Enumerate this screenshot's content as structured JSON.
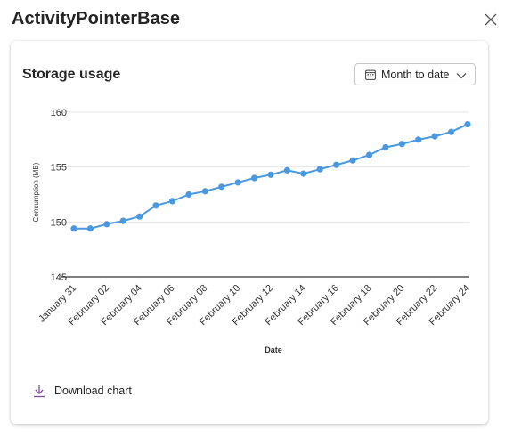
{
  "dialog": {
    "title": "ActivityPointerBase",
    "close_icon": "close-icon"
  },
  "card": {
    "title": "Storage usage",
    "range_dropdown": {
      "icon": "calendar-icon",
      "selected": "Month to date",
      "chevron": "chevron-down-icon"
    },
    "download": {
      "icon": "download-icon",
      "label": "Download chart"
    }
  },
  "colors": {
    "series": "#4a98e0",
    "accent_purple": "#7a4fa0",
    "grid": "#e6e6e6",
    "axis": "#333333"
  },
  "chart_data": {
    "type": "line",
    "xlabel": "Date",
    "ylabel": "Consumption (MB)",
    "ylim": [
      145,
      160
    ],
    "yticks": [
      145,
      150,
      155,
      160
    ],
    "grid": true,
    "x": [
      "January 31",
      "February 01",
      "February 02",
      "February 03",
      "February 04",
      "February 05",
      "February 06",
      "February 07",
      "February 08",
      "February 09",
      "February 10",
      "February 11",
      "February 12",
      "February 13",
      "February 14",
      "February 15",
      "February 16",
      "February 17",
      "February 18",
      "February 19",
      "February 20",
      "February 21",
      "February 22",
      "February 23",
      "February 24"
    ],
    "xtick_labels": [
      "January 31",
      "February 02",
      "February 04",
      "February 06",
      "February 08",
      "February 10",
      "February 12",
      "February 14",
      "February 16",
      "February 18",
      "February 20",
      "February 22",
      "February 24"
    ],
    "series": [
      {
        "values": [
          149.4,
          149.4,
          149.8,
          150.1,
          150.5,
          151.5,
          151.9,
          152.5,
          152.8,
          153.2,
          153.6,
          154.0,
          154.3,
          154.7,
          154.4,
          154.8,
          155.2,
          155.6,
          156.1,
          156.8,
          157.1,
          157.5,
          157.8,
          158.2,
          158.9
        ]
      }
    ]
  }
}
